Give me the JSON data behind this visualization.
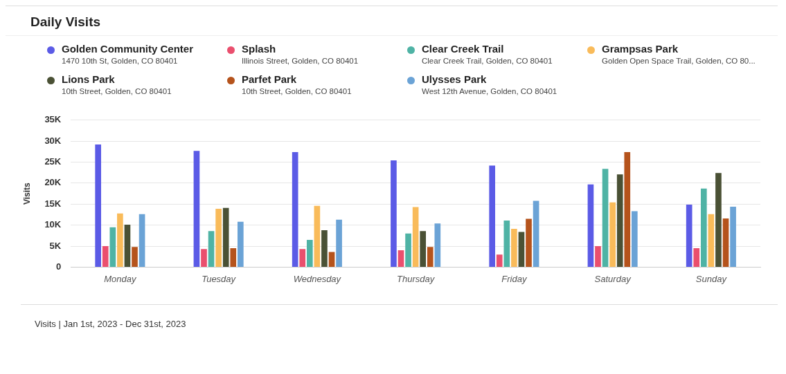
{
  "chart_data": {
    "type": "bar",
    "title": "Daily Visits",
    "ylabel": "Visits",
    "categories": [
      "Monday",
      "Tuesday",
      "Wednesday",
      "Thursday",
      "Friday",
      "Saturday",
      "Sunday"
    ],
    "series": [
      {
        "name": "Golden Community Center",
        "color": "#5b5be6",
        "values": [
          29200,
          27700,
          27400,
          25400,
          24200,
          19700,
          14900
        ]
      },
      {
        "name": "Splash",
        "color": "#ea4f6e",
        "values": [
          5000,
          4300,
          4300,
          4000,
          3000,
          5000,
          4500
        ]
      },
      {
        "name": "Clear Creek Trail",
        "color": "#4fb3a5",
        "values": [
          9500,
          8600,
          6500,
          8000,
          11100,
          23400,
          18700
        ]
      },
      {
        "name": "Grampsas Park",
        "color": "#f9bb5a",
        "values": [
          12800,
          13900,
          14600,
          14300,
          9100,
          15400,
          12600
        ]
      },
      {
        "name": "Lions Park",
        "color": "#4a5135",
        "values": [
          10100,
          14100,
          8800,
          8600,
          8400,
          22100,
          22400
        ]
      },
      {
        "name": "Parfet Park",
        "color": "#b5531c",
        "values": [
          4800,
          4500,
          3600,
          4800,
          11500,
          27400,
          11600
        ]
      },
      {
        "name": "Ulysses Park",
        "color": "#6ba3d6",
        "values": [
          12600,
          10800,
          11300,
          10400,
          15800,
          13300,
          14400
        ]
      }
    ],
    "ylim": [
      0,
      35000
    ],
    "yticks": [
      0,
      {
        "value": 5000,
        "label": "5K"
      },
      {
        "value": 10000,
        "label": "10K"
      },
      {
        "value": 15000,
        "label": "15K"
      },
      {
        "value": 20000,
        "label": "20K"
      },
      {
        "value": 25000,
        "label": "25K"
      },
      {
        "value": 30000,
        "label": "30K"
      },
      {
        "value": 35000,
        "label": "35K"
      }
    ],
    "grid": "y",
    "legend": "top",
    "annotations": [
      "1470 10th St, Golden, CO 80401",
      "Illinois Street, Golden, CO 80401",
      "Clear Creek Trail, Golden, CO 80401",
      "Golden Open Space Trail, Golden, CO 80...",
      "10th Street, Golden, CO 80401",
      "10th Street, Golden, CO 80401",
      "West 12th Avenue, Golden, CO 80401",
      "Visits | Jan 1st, 2023 - Dec 31st, 2023"
    ]
  }
}
